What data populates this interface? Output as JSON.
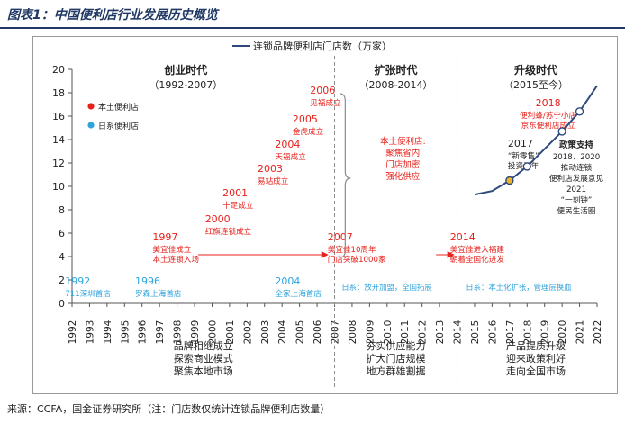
{
  "figure": {
    "title": "图表1：中国便利店行业发展历史概览",
    "source": "来源：CCFA，国金证券研究所（注：门店数仅统计连锁品牌便利店数量）"
  },
  "chart_data": {
    "type": "line",
    "series": [
      {
        "name": "连锁品牌便利店门店数（万家）",
        "color": "#2e4a7d",
        "x": [
          2015,
          2016,
          2017,
          2018,
          2019,
          2020,
          2021,
          2022
        ],
        "y": [
          9.3,
          9.6,
          10.5,
          11.7,
          13.2,
          14.7,
          16.4,
          18.6
        ],
        "markers": [
          {
            "x": 2017,
            "y": 10.5,
            "fill": "#f0b429"
          },
          {
            "x": 2018,
            "y": 11.7,
            "fill": "#ffffff"
          },
          {
            "x": 2020,
            "y": 14.7,
            "fill": "#ffffff"
          },
          {
            "x": 2021,
            "y": 16.4,
            "fill": "#ffffff"
          }
        ]
      }
    ],
    "x_ticks": [
      "1992",
      "1993",
      "1994",
      "1995",
      "1996",
      "1997",
      "1998",
      "1999",
      "2000",
      "2001",
      "2002",
      "2003",
      "2004",
      "2005",
      "2006",
      "2007",
      "2008",
      "2009",
      "2010",
      "2011",
      "2012",
      "2013",
      "2014",
      "2015",
      "2016",
      "2017",
      "2018",
      "2019",
      "2020",
      "2021",
      "2022"
    ],
    "y_ticks": [
      "0",
      "2",
      "4",
      "6",
      "8",
      "10",
      "12",
      "14",
      "16",
      "18",
      "20"
    ],
    "ylim": [
      0,
      20
    ],
    "xlim": [
      1992,
      2022
    ],
    "legend_position": "top",
    "category_legend": [
      {
        "label": "本土便利店",
        "color": "#e8211b"
      },
      {
        "label": "日系便利店",
        "color": "#2fa4dc"
      }
    ],
    "dividers": [
      2007,
      2014
    ],
    "periods": [
      {
        "name": "创业时代",
        "range": "（1992-2007）",
        "x": 1998.5
      },
      {
        "name": "扩张时代",
        "range": "（2008-2014）",
        "x": 2010.5
      },
      {
        "name": "升级时代",
        "range": "（2015至今）",
        "x": 2018.5
      }
    ],
    "events": [
      {
        "year": "1992",
        "text": "711深圳首店",
        "color": "#2fa4dc"
      },
      {
        "year": "1996",
        "text": "罗森上海首店",
        "color": "#2fa4dc"
      },
      {
        "year": "1997",
        "text": "美宜佳成立\n本土连锁入场",
        "color": "#e8211b"
      },
      {
        "year": "2000",
        "text": "红旗连锁成立",
        "color": "#e8211b"
      },
      {
        "year": "2001",
        "text": "十足成立",
        "color": "#e8211b"
      },
      {
        "year": "2003",
        "text": "易站成立",
        "color": "#e8211b"
      },
      {
        "year": "2004",
        "text": "天福成立",
        "color": "#e8211b"
      },
      {
        "year": "2004",
        "text": "全家上海首店",
        "color": "#2fa4dc"
      },
      {
        "year": "2005",
        "text": "金虎成立",
        "color": "#e8211b"
      },
      {
        "year": "2006",
        "text": "见福成立",
        "color": "#e8211b"
      },
      {
        "year": "2007",
        "text": "美宜佳10周年\n门店突破1000家",
        "color": "#e8211b"
      },
      {
        "year": "2014",
        "text": "美宜佳进入福建\n朝着全国化进发",
        "color": "#e8211b"
      },
      {
        "year": "2018",
        "text": "便利蜂/苏宁小店\n京东便利店成立",
        "color": "#e8211b"
      },
      {
        "year": "2017",
        "text": "“新零售”\n投资元年",
        "color": "#222222"
      }
    ],
    "notes": {
      "brace_text": "本土便利店:\n聚焦省内\n门店加密\n强化供应",
      "policy_title": "政策支持",
      "policy_text": "2018、2020\n推动连锁\n便利店发展意见\n2021\n“一刻钟”\n便民生活圈",
      "japan_1": "日系：放开加盟，全国拓展",
      "japan_2": "日系：本土化扩张，管理层换血"
    },
    "bottom_labels": [
      "品牌相继成立\n探索商业模式\n聚焦本地市场",
      "夯实供应能力\n扩大门店规模\n地方群雄割据",
      "产品提质升级\n迎来政策利好\n走向全国市场"
    ]
  }
}
